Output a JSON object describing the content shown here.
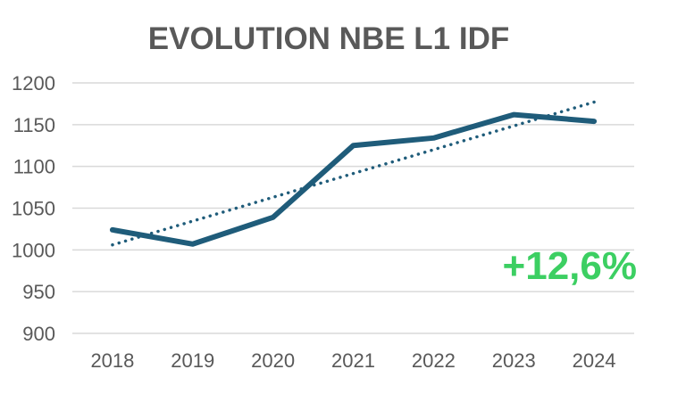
{
  "chart_data": {
    "type": "line",
    "title": "EVOLUTION NBE L1 IDF",
    "xlabel": "",
    "ylabel": "",
    "categories": [
      "2018",
      "2019",
      "2020",
      "2021",
      "2022",
      "2023",
      "2024"
    ],
    "series": [
      {
        "name": "NBE L1 IDF",
        "values": [
          1024,
          1007,
          1039,
          1125,
          1134,
          1162,
          1154
        ],
        "color": "#1f5c7a",
        "style": "solid"
      }
    ],
    "trendline": {
      "type": "linear",
      "start": 1006,
      "end": 1177,
      "color": "#1f5c7a",
      "style": "dotted"
    },
    "ylim": [
      900,
      1200
    ],
    "yticks": [
      900,
      950,
      1000,
      1050,
      1100,
      1150,
      1200
    ],
    "ytick_labels": [
      "900",
      "950",
      "1000",
      "1050",
      "1100",
      "1150",
      "1200"
    ],
    "grid": true,
    "legend": "none",
    "annotations": [
      {
        "text": "+12,6%",
        "position": "bottom-right",
        "color": "#3ccf62"
      }
    ]
  }
}
